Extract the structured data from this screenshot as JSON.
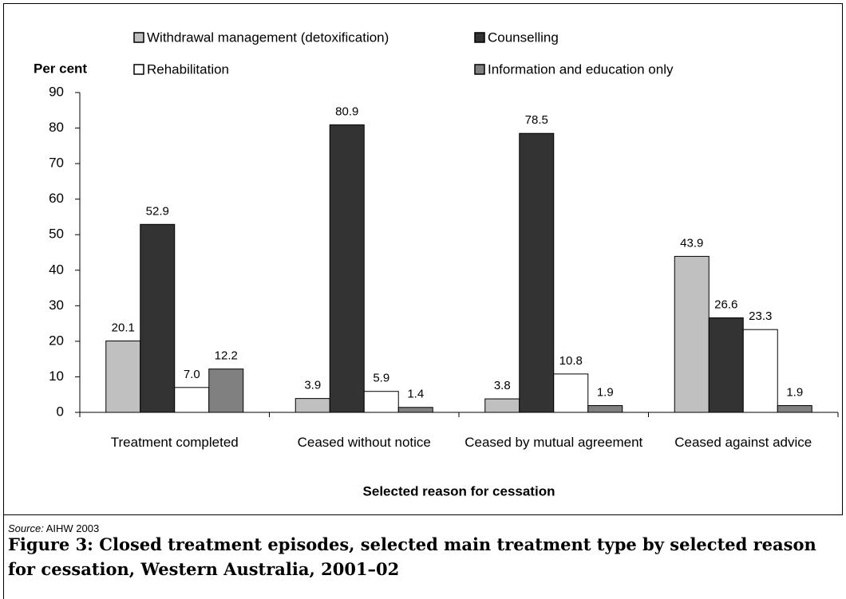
{
  "chart_data": {
    "type": "bar",
    "y_label": "Per cent",
    "x_label": "Selected reason for cessation",
    "categories": [
      "Treatment completed",
      "Ceased without notice",
      "Ceased by mutual agreement",
      "Ceased against advice"
    ],
    "series": [
      {
        "name": "Withdrawal management (detoxification)",
        "color": "#c0c0c0",
        "values": [
          20.1,
          3.9,
          3.8,
          43.9
        ],
        "value_labels": [
          "20.1",
          "3.9",
          "3.8",
          "43.9"
        ]
      },
      {
        "name": "Counselling",
        "color": "#333333",
        "values": [
          52.9,
          80.9,
          78.5,
          26.6
        ],
        "value_labels": [
          "52.9",
          "80.9",
          "78.5",
          "26.6"
        ]
      },
      {
        "name": "Rehabilitation",
        "color": "#ffffff",
        "values": [
          7.0,
          5.9,
          10.8,
          23.3
        ],
        "value_labels": [
          "7.0",
          "5.9",
          "10.8",
          "23.3"
        ]
      },
      {
        "name": "Information and education only",
        "color": "#808080",
        "values": [
          12.2,
          1.4,
          1.9,
          1.9
        ],
        "value_labels": [
          "12.2",
          "1.4",
          "1.9",
          "1.9"
        ]
      }
    ],
    "ylim": [
      0,
      90
    ],
    "yticks": [
      0,
      10,
      20,
      30,
      40,
      50,
      60,
      70,
      80,
      90
    ],
    "grid": false
  },
  "source_label": "Source:",
  "source": "AIHW 2003",
  "caption": "Figure 3: Closed treatment episodes, selected main treatment type by selected reason for cessation, Western Australia, 2001–02"
}
